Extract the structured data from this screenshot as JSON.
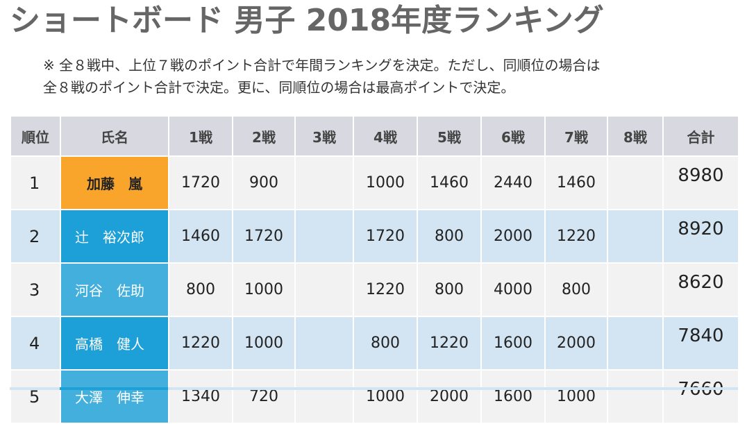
{
  "title": "ショートボード 男子 2018年度ランキング",
  "note": {
    "line1": "※ 全８戦中、上位７戦のポイント合計で年間ランキングを決定。ただし、同順位の場合は",
    "line2": "全８戦のポイント合計で決定。更に、同順位の場合は最高ポイントで決定。"
  },
  "table": {
    "headers": [
      "順位",
      "氏名",
      "1戦",
      "2戦",
      "3戦",
      "4戦",
      "5戦",
      "6戦",
      "7戦",
      "8戦",
      "合計"
    ],
    "rows": [
      {
        "rank": "1",
        "name": "加藤　嵐",
        "scores": [
          "1720",
          "900",
          "",
          "1000",
          "1460",
          "2440",
          "1460",
          ""
        ],
        "total": "8980"
      },
      {
        "rank": "2",
        "name": "辻　裕次郎",
        "scores": [
          "1460",
          "1720",
          "",
          "1720",
          "800",
          "2000",
          "1220",
          ""
        ],
        "total": "8920"
      },
      {
        "rank": "3",
        "name": "河谷　佐助",
        "scores": [
          "800",
          "1000",
          "",
          "1220",
          "800",
          "4000",
          "800",
          ""
        ],
        "total": "8620"
      },
      {
        "rank": "4",
        "name": "高橋　健人",
        "scores": [
          "1220",
          "1000",
          "",
          "800",
          "1220",
          "1600",
          "2000",
          ""
        ],
        "total": "7840"
      },
      {
        "rank": "5",
        "name": "大澤　伸幸",
        "scores": [
          "1340",
          "720",
          "",
          "1000",
          "2000",
          "1600",
          "1000",
          ""
        ],
        "total": "7660"
      }
    ]
  },
  "colors": {
    "header_bg": "#d7d8e0",
    "row_odd_bg": "#f2f2f2",
    "row_even_bg": "#d3e5f2",
    "name_gold": "#f9a42b",
    "name_blue_dark": "#1d9fd7",
    "name_blue_light": "#42afdc"
  }
}
